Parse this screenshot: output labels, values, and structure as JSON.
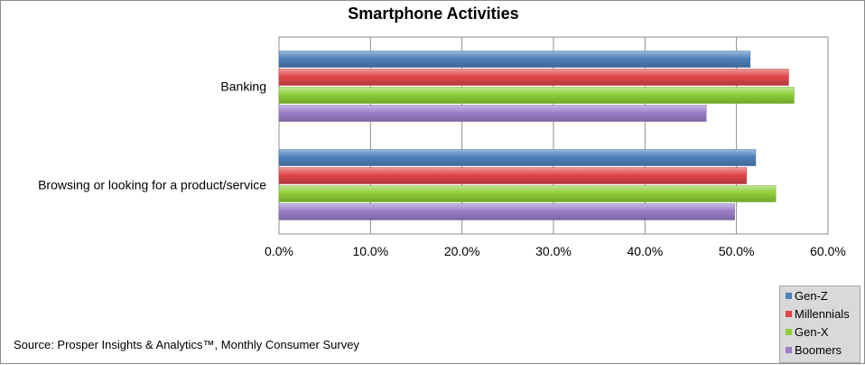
{
  "chart_data": {
    "type": "bar",
    "orientation": "horizontal",
    "title": "Smartphone Activities",
    "categories": [
      "Banking",
      "Browsing or looking for a product/service"
    ],
    "series": [
      {
        "name": "Gen-Z",
        "values": [
          0.515,
          0.521
        ],
        "color": "#4f81bd"
      },
      {
        "name": "Millennials",
        "values": [
          0.557,
          0.511
        ],
        "color": "#e0464a"
      },
      {
        "name": "Gen-X",
        "values": [
          0.563,
          0.543
        ],
        "color": "#8fcf3a"
      },
      {
        "name": "Boomers",
        "values": [
          0.467,
          0.498
        ],
        "color": "#9b7fc9"
      }
    ],
    "xlim": [
      0,
      0.6
    ],
    "x_ticks": [
      "0.0%",
      "10.0%",
      "20.0%",
      "30.0%",
      "40.0%",
      "50.0%",
      "60.0%"
    ],
    "xlabel": "",
    "ylabel": "",
    "grid": true,
    "legend_position": "bottom-right"
  },
  "source_note": "Source: Prosper Insights & Analytics™, Monthly Consumer Survey"
}
